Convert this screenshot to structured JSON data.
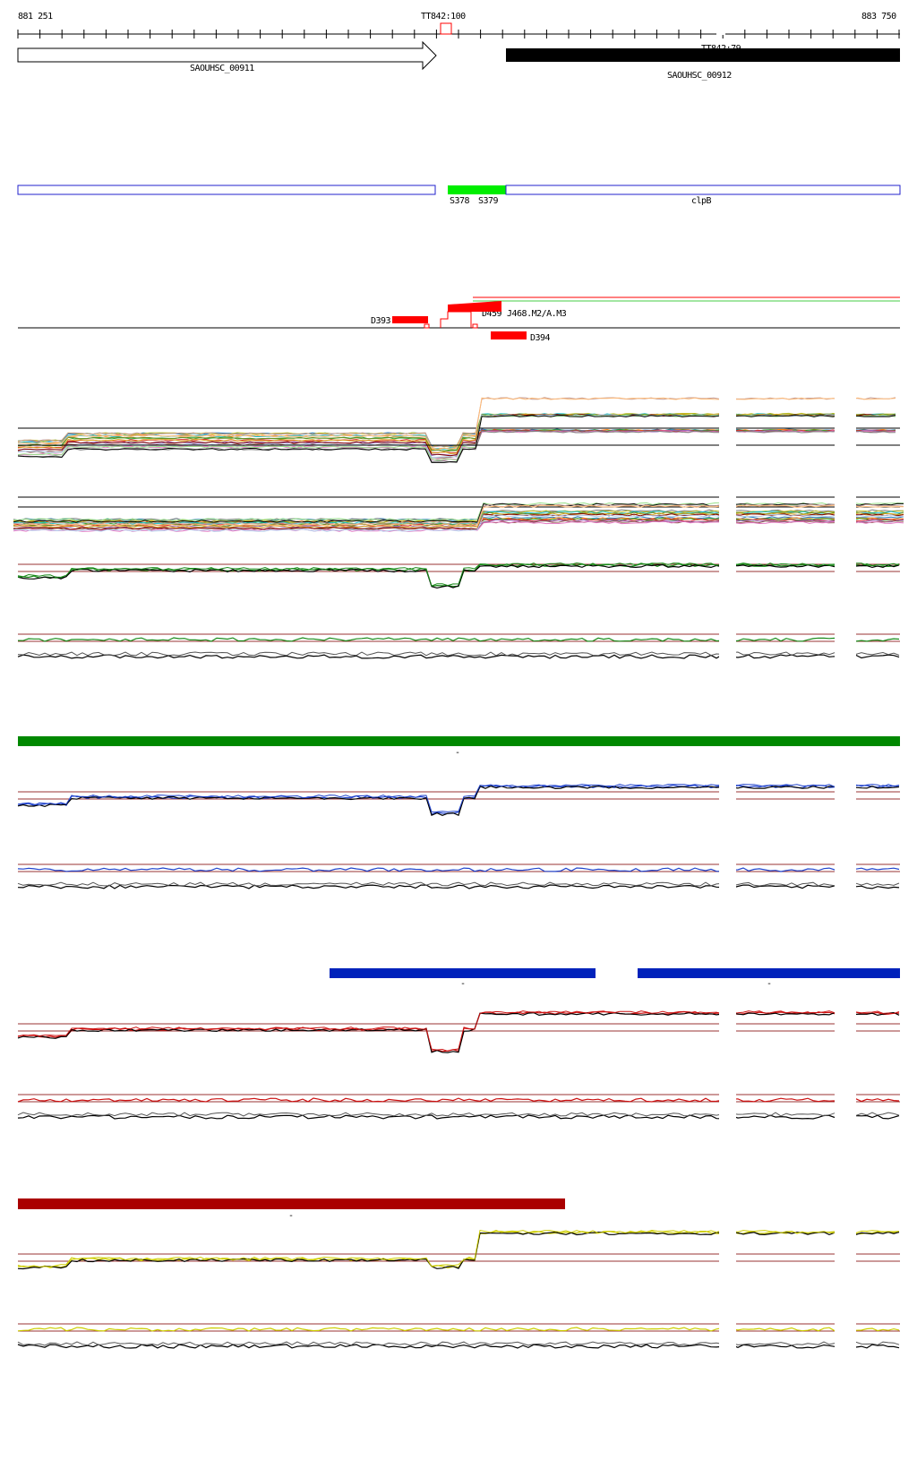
{
  "coords": {
    "start": "881 251",
    "end": "883 750"
  },
  "terminators": {
    "t100": "TT842:100",
    "t79": "TT842:79"
  },
  "genes": {
    "left": "SAOUHSC_00911",
    "right": "SAOUHSC_00912"
  },
  "annotation": {
    "s378": "S378",
    "s379": "S379",
    "gene": "clpB"
  },
  "segments": {
    "d393": "D393",
    "d394": "D394",
    "d459": "D459",
    "overlap": "J468.M2/A.M3"
  },
  "colors": {
    "forward": "#008800",
    "reverse": "#0022bb",
    "mixed": "#aa0000",
    "overlap": "#ff0000",
    "annotation": "#00ee00",
    "annotationOutline": "#2222cc"
  },
  "markers": {
    "green": "-",
    "blue1": "-",
    "blue2": "-",
    "red": "-"
  }
}
